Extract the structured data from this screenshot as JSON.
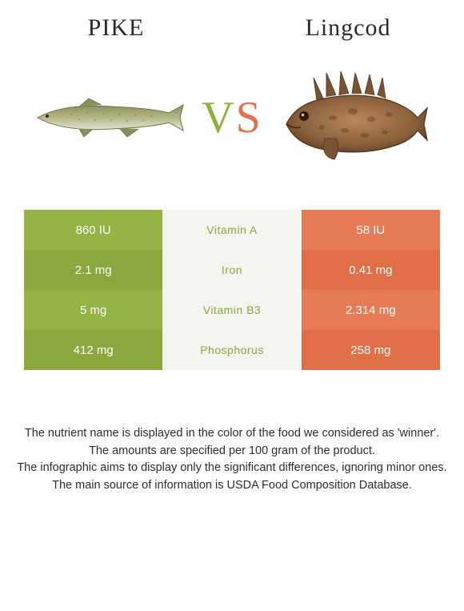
{
  "colors": {
    "left_main": "#94b445",
    "left_alt": "#8aa83e",
    "right_main": "#e77b56",
    "right_alt": "#e06e47",
    "mid_bg": "#f4f4f0",
    "mid_text_left": "#8aa83e",
    "mid_text_right": "#e06e47",
    "title_text": "#2a2a2a"
  },
  "header": {
    "left_title": "PIKE",
    "right_title": "Lingcod"
  },
  "vs": {
    "v": "V",
    "s": "S"
  },
  "rows": [
    {
      "nutrient": "Vitamin A",
      "left": "860 IU",
      "right": "58 IU",
      "winner": "left"
    },
    {
      "nutrient": "Iron",
      "left": "2.1 mg",
      "right": "0.41 mg",
      "winner": "left"
    },
    {
      "nutrient": "Vitamin B3",
      "left": "5 mg",
      "right": "2.314 mg",
      "winner": "left"
    },
    {
      "nutrient": "Phosphorus",
      "left": "412 mg",
      "right": "258 mg",
      "winner": "left"
    }
  ],
  "footer": {
    "line1": "The nutrient name is displayed in the color of the food we considered as 'winner'.",
    "line2": "The amounts are specified per 100 gram of the product.",
    "line3": "The infographic aims to display only the significant differences, ignoring minor ones.",
    "line4": "The main source of information is USDA Food Composition Database."
  }
}
